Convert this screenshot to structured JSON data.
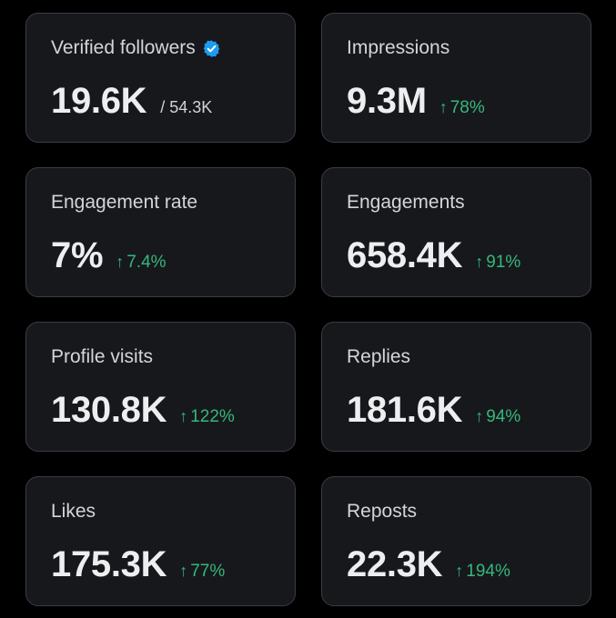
{
  "colors": {
    "background": "#000000",
    "card": "#17181c",
    "card_border": "#3a3d42",
    "positive": "#35b87c",
    "verified_badge": "#1d9bf0"
  },
  "metrics": [
    {
      "label": "Verified followers",
      "value": "19.6K",
      "suffix": "/ 54.3K",
      "badge_icon": "verified-badge-icon"
    },
    {
      "label": "Impressions",
      "value": "9.3M",
      "change": "78%",
      "change_icon": "arrow-up-icon"
    },
    {
      "label": "Engagement rate",
      "value": "7%",
      "change": "7.4%",
      "change_icon": "arrow-up-icon"
    },
    {
      "label": "Engagements",
      "value": "658.4K",
      "change": "91%",
      "change_icon": "arrow-up-icon"
    },
    {
      "label": "Profile visits",
      "value": "130.8K",
      "change": "122%",
      "change_icon": "arrow-up-icon"
    },
    {
      "label": "Replies",
      "value": "181.6K",
      "change": "94%",
      "change_icon": "arrow-up-icon"
    },
    {
      "label": "Likes",
      "value": "175.3K",
      "change": "77%",
      "change_icon": "arrow-up-icon"
    },
    {
      "label": "Reposts",
      "value": "22.3K",
      "change": "194%",
      "change_icon": "arrow-up-icon"
    }
  ]
}
